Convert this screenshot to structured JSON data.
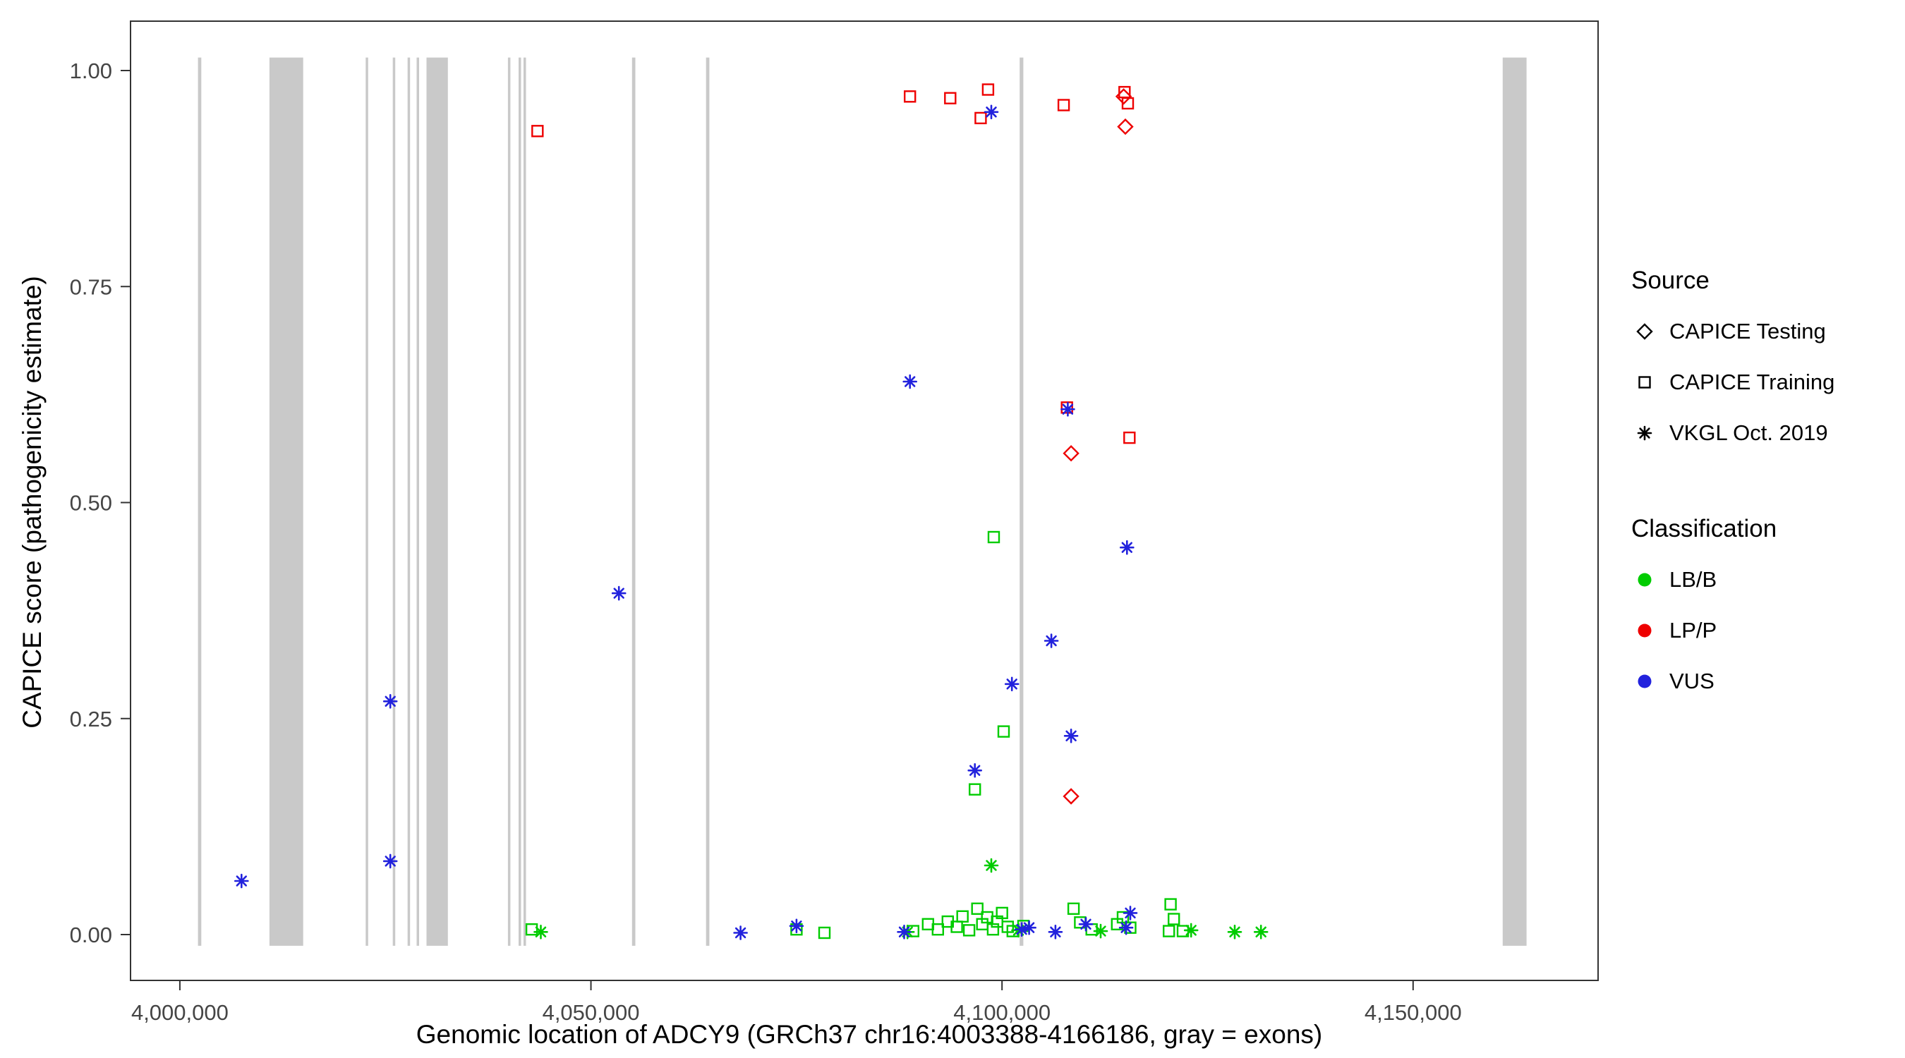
{
  "chart_data": {
    "type": "scatter",
    "title": "",
    "xlabel": "Genomic location of ADCY9 (GRCh37 chr16:4003388-4166186, gray = exons)",
    "ylabel": "CAPICE score (pathogenicity estimate)",
    "xlim": [
      3994000,
      4172500
    ],
    "ylim": [
      0,
      1.0
    ],
    "grid": "off",
    "x_ticks": [
      {
        "value": 4000000,
        "label": "4,000,000"
      },
      {
        "value": 4050000,
        "label": "4,050,000"
      },
      {
        "value": 4100000,
        "label": "4,100,000"
      },
      {
        "value": 4150000,
        "label": "4,150,000"
      }
    ],
    "y_ticks": [
      {
        "value": 0.0,
        "label": "0.00"
      },
      {
        "value": 0.25,
        "label": "0.25"
      },
      {
        "value": 0.5,
        "label": "0.50"
      },
      {
        "value": 0.75,
        "label": "0.75"
      },
      {
        "value": 1.0,
        "label": "1.00"
      }
    ],
    "exon_color": "#c9c9c9",
    "exons": [
      {
        "start": 4002200,
        "end": 4002600
      },
      {
        "start": 4010900,
        "end": 4015000
      },
      {
        "start": 4022600,
        "end": 4022900
      },
      {
        "start": 4025900,
        "end": 4026200
      },
      {
        "start": 4027700,
        "end": 4028000
      },
      {
        "start": 4028800,
        "end": 4029100
      },
      {
        "start": 4030000,
        "end": 4032600
      },
      {
        "start": 4039900,
        "end": 4040200
      },
      {
        "start": 4041200,
        "end": 4041500
      },
      {
        "start": 4041800,
        "end": 4042100
      },
      {
        "start": 4055000,
        "end": 4055400
      },
      {
        "start": 4064000,
        "end": 4064400
      },
      {
        "start": 4102150,
        "end": 4102600
      },
      {
        "start": 4160900,
        "end": 4163800
      }
    ],
    "series": [
      {
        "name": "CAPICE Training LB/B",
        "source": "CAPICE Training",
        "classification": "LB/B",
        "shape": "square",
        "color": "#00cc00",
        "points": [
          [
            4099000,
            0.46
          ],
          [
            4100200,
            0.235
          ],
          [
            4096700,
            0.168
          ],
          [
            4042800,
            0.006
          ],
          [
            4075000,
            0.006
          ],
          [
            4078400,
            0.002
          ],
          [
            4089200,
            0.004
          ],
          [
            4091000,
            0.012
          ],
          [
            4092200,
            0.006
          ],
          [
            4093400,
            0.015
          ],
          [
            4094500,
            0.009
          ],
          [
            4095200,
            0.021
          ],
          [
            4096000,
            0.005
          ],
          [
            4097000,
            0.03
          ],
          [
            4097600,
            0.012
          ],
          [
            4098200,
            0.02
          ],
          [
            4098900,
            0.006
          ],
          [
            4099400,
            0.015
          ],
          [
            4100000,
            0.025
          ],
          [
            4100700,
            0.009
          ],
          [
            4101300,
            0.004
          ],
          [
            4102600,
            0.01
          ],
          [
            4108700,
            0.03
          ],
          [
            4109500,
            0.014
          ],
          [
            4110900,
            0.006
          ],
          [
            4114000,
            0.012
          ],
          [
            4114700,
            0.02
          ],
          [
            4115600,
            0.008
          ],
          [
            4120300,
            0.004
          ],
          [
            4120500,
            0.035
          ],
          [
            4120900,
            0.018
          ],
          [
            4122000,
            0.004
          ]
        ]
      },
      {
        "name": "VKGL Oct. 2019 LB/B",
        "source": "VKGL Oct. 2019",
        "classification": "LB/B",
        "shape": "asterisk",
        "color": "#00cc00",
        "points": [
          [
            4043900,
            0.003
          ],
          [
            4088500,
            0.003
          ],
          [
            4098700,
            0.08
          ],
          [
            4102000,
            0.005
          ],
          [
            4112000,
            0.004
          ],
          [
            4123000,
            0.005
          ],
          [
            4128300,
            0.003
          ],
          [
            4131500,
            0.003
          ]
        ]
      },
      {
        "name": "CAPICE Training LP/P",
        "source": "CAPICE Training",
        "classification": "LP/P",
        "shape": "square",
        "color": "#ee0000",
        "points": [
          [
            4043500,
            0.93
          ],
          [
            4088800,
            0.97
          ],
          [
            4093700,
            0.968
          ],
          [
            4097400,
            0.945
          ],
          [
            4098300,
            0.978
          ],
          [
            4107500,
            0.96
          ],
          [
            4114900,
            0.975
          ],
          [
            4115300,
            0.962
          ],
          [
            4107900,
            0.61
          ],
          [
            4115500,
            0.575
          ]
        ]
      },
      {
        "name": "CAPICE Testing LP/P",
        "source": "CAPICE Testing",
        "classification": "LP/P",
        "shape": "diamond",
        "color": "#ee0000",
        "points": [
          [
            4115000,
            0.935
          ],
          [
            4114800,
            0.97
          ],
          [
            4108400,
            0.557
          ],
          [
            4108400,
            0.16
          ]
        ]
      },
      {
        "name": "VKGL Oct. 2019 VUS",
        "source": "VKGL Oct. 2019",
        "classification": "VUS",
        "shape": "asterisk",
        "color": "#2222dd",
        "points": [
          [
            4007500,
            0.062
          ],
          [
            4025600,
            0.27
          ],
          [
            4025600,
            0.085
          ],
          [
            4053400,
            0.395
          ],
          [
            4068200,
            0.002
          ],
          [
            4075000,
            0.01
          ],
          [
            4088100,
            0.003
          ],
          [
            4088800,
            0.64
          ],
          [
            4096700,
            0.19
          ],
          [
            4098700,
            0.952
          ],
          [
            4101200,
            0.29
          ],
          [
            4102400,
            0.006
          ],
          [
            4103300,
            0.008
          ],
          [
            4106000,
            0.34
          ],
          [
            4106500,
            0.003
          ],
          [
            4108000,
            0.608
          ],
          [
            4108400,
            0.23
          ],
          [
            4110200,
            0.012
          ],
          [
            4115100,
            0.008
          ],
          [
            4115200,
            0.448
          ],
          [
            4115600,
            0.025
          ]
        ]
      }
    ],
    "legend": {
      "source_title": "Source",
      "source_items": [
        {
          "label": "CAPICE Testing",
          "shape": "diamond"
        },
        {
          "label": "CAPICE Training",
          "shape": "square"
        },
        {
          "label": "VKGL Oct. 2019",
          "shape": "asterisk"
        }
      ],
      "classification_title": "Classification",
      "classification_items": [
        {
          "label": "LB/B",
          "color": "#00cc00"
        },
        {
          "label": "LP/P",
          "color": "#ee0000"
        },
        {
          "label": "VUS",
          "color": "#2222dd"
        }
      ]
    }
  }
}
